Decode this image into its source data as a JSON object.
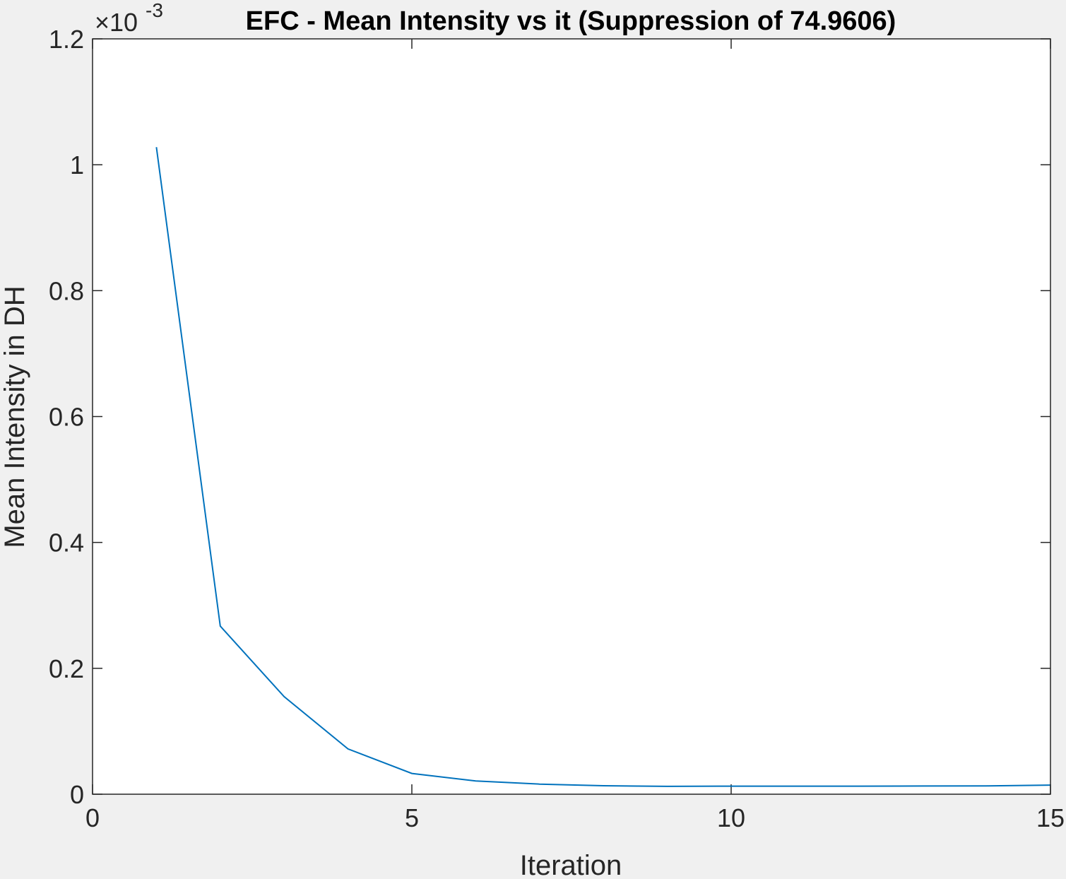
{
  "chart_data": {
    "type": "line",
    "title": "EFC - Mean Intensity vs it (Suppression of 74.9606)",
    "xlabel": "Iteration",
    "ylabel": "Mean Intensity in DH",
    "y_exponent": "-3",
    "xlim": [
      0,
      15
    ],
    "ylim": [
      0,
      1.2
    ],
    "xticks": [
      "0",
      "5",
      "10",
      "15"
    ],
    "xtick_values": [
      0,
      5,
      10,
      15
    ],
    "yticks": [
      "0",
      "0.2",
      "0.4",
      "0.6",
      "0.8",
      "1",
      "1.2"
    ],
    "ytick_values": [
      0,
      0.2,
      0.4,
      0.6,
      0.8,
      1.0,
      1.2
    ],
    "grid": false,
    "series": [
      {
        "color": "#0072BD",
        "x": [
          1,
          2,
          3,
          4,
          5,
          6,
          7,
          8,
          9,
          10,
          11,
          12,
          13,
          14,
          15
        ],
        "y": [
          1.028,
          0.267,
          0.155,
          0.072,
          0.033,
          0.021,
          0.016,
          0.0135,
          0.0125,
          0.0128,
          0.0128,
          0.0128,
          0.013,
          0.0133,
          0.0145
        ]
      }
    ]
  }
}
